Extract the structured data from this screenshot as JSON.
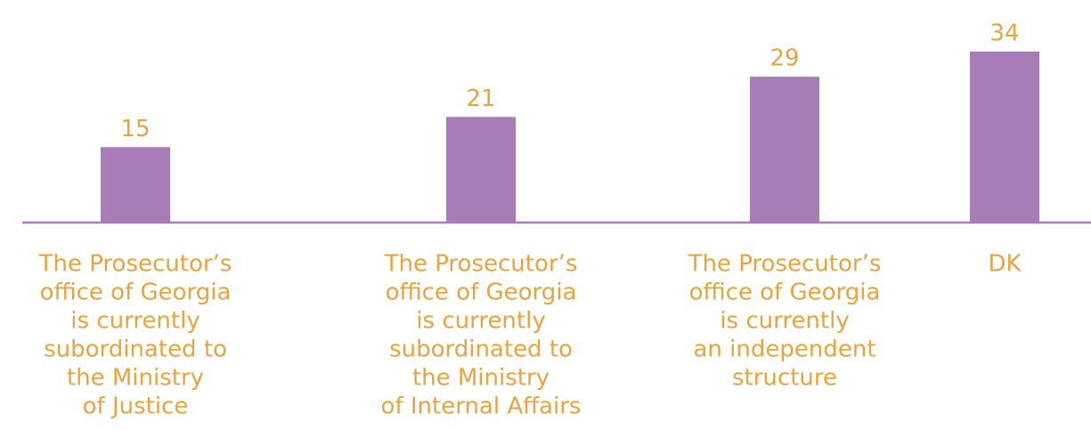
{
  "chart_data": {
    "type": "bar",
    "categories": [
      [
        "The Prosecutor’s",
        "office of Georgia",
        "is currently",
        "subordinated to",
        "the Ministry",
        "of Justice"
      ],
      [
        "The Prosecutor’s",
        "office of Georgia",
        "is currently",
        "subordinated to",
        "the Ministry",
        "of Internal Affairs"
      ],
      [
        "The Prosecutor’s",
        "office of Georgia",
        "is currently",
        "an independent",
        "structure"
      ],
      [
        "DK"
      ]
    ],
    "values": [
      15,
      21,
      29,
      34
    ],
    "color": "#a87db7",
    "label_color": "#e9a43c"
  }
}
